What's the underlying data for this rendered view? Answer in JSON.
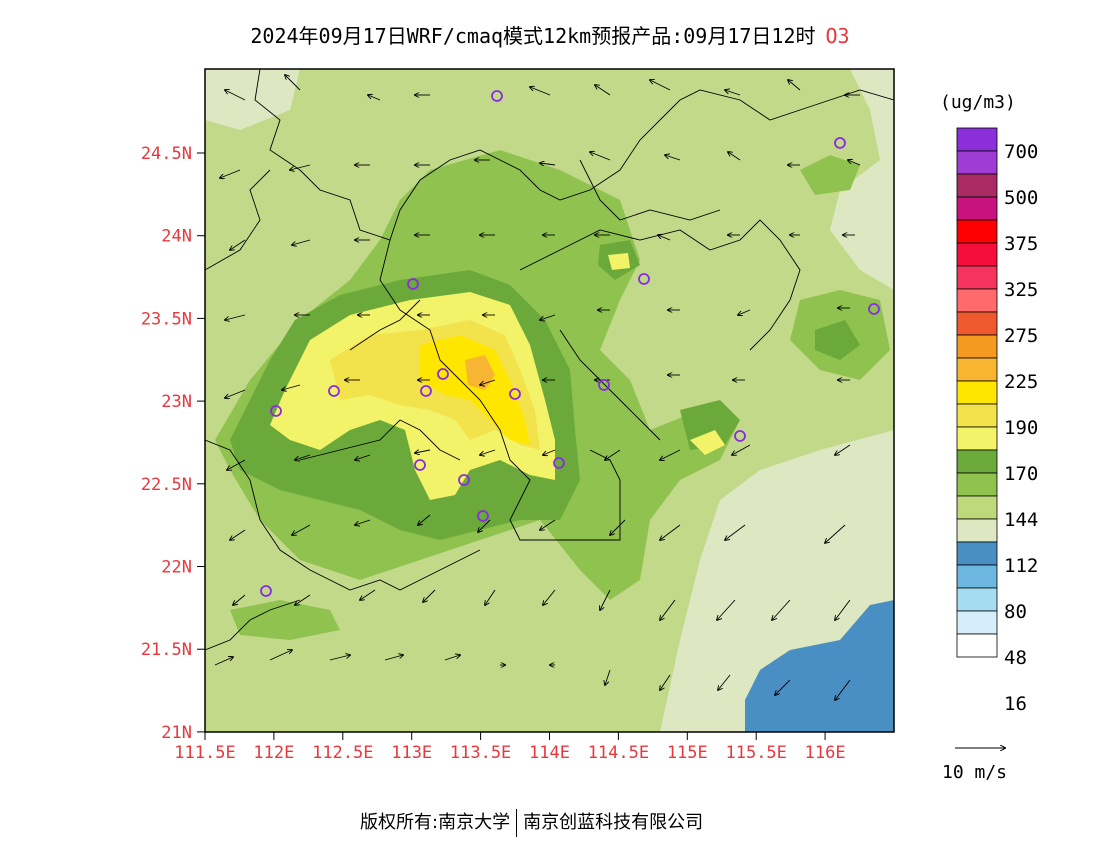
{
  "title": "2024年09月17日WRF/cmaq模式12km预报产品:09月17日12时",
  "variable": "O3",
  "unit": "(ug/m3)",
  "x_ticks": [
    "111.5E",
    "112E",
    "112.5E",
    "113E",
    "113.5E",
    "114E",
    "114.5E",
    "115E",
    "115.5E",
    "116E"
  ],
  "y_ticks": [
    "24.5N",
    "24N",
    "23.5N",
    "23N",
    "22.5N",
    "22N",
    "21.5N",
    "21N"
  ],
  "legend": {
    "labels": [
      "700",
      "500",
      "375",
      "325",
      "275",
      "225",
      "190",
      "170",
      "144",
      "112",
      "80",
      "48",
      "16"
    ],
    "colors": [
      "#ffffff",
      "#d6eef9",
      "#a4dcf2",
      "#6cb6e0",
      "#4a8fc4",
      "#dde8c2",
      "#bdd97a",
      "#8fc24f",
      "#6aa93a",
      "#f3f36a",
      "#f2e24c",
      "#ffe600",
      "#f7b532",
      "#f59a20",
      "#ee5a2e",
      "#ff6a6a",
      "#f6335e",
      "#f50e3c",
      "#ff0000",
      "#c8137e",
      "#aa2b63",
      "#a03cd6",
      "#8b2fd9"
    ]
  },
  "wind_scale_label": "10 m/s",
  "footer": {
    "left": "版权所有:南京大学",
    "right": "南京创蓝科技有限公司"
  },
  "colors": {
    "land_background": "#c2d98a",
    "sea_blue": "#4a8fc4",
    "tick_red": "#e8383d",
    "station_purple": "#8a2be2"
  }
}
